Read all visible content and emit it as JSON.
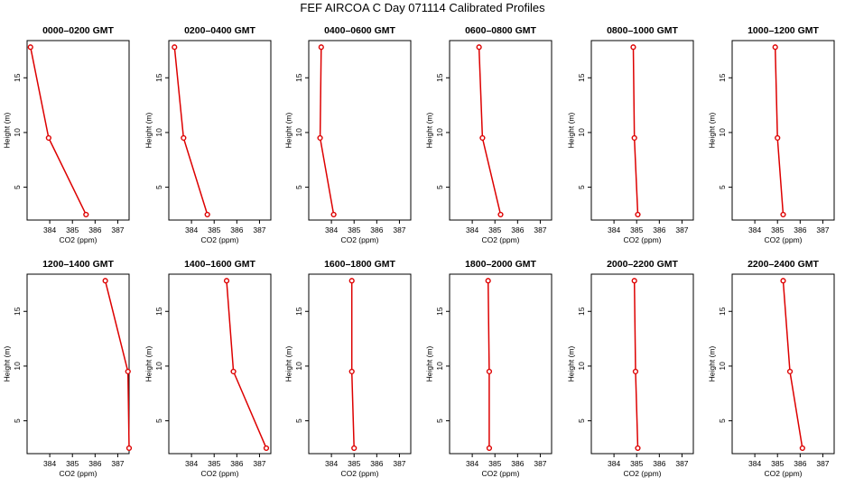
{
  "title": "FEF AIRCOA C  Day 071114  Calibrated Profiles",
  "colors": {
    "line": "#dd0000",
    "axis": "#000000"
  },
  "chart_data": {
    "type": "line",
    "xlabel": "CO2 (ppm)",
    "ylabel": "Height (m)",
    "xlim": [
      383,
      387.5
    ],
    "ylim": [
      2,
      18.4
    ],
    "xticks": [
      384,
      385,
      386,
      387
    ],
    "yticks": [
      5,
      10,
      15
    ],
    "panels": [
      {
        "title": "0000–0200 GMT",
        "points": [
          [
            383.15,
            17.8
          ],
          [
            383.95,
            9.5
          ],
          [
            385.6,
            2.5
          ]
        ]
      },
      {
        "title": "0200–0400 GMT",
        "points": [
          [
            383.25,
            17.8
          ],
          [
            383.65,
            9.5
          ],
          [
            384.7,
            2.5
          ]
        ]
      },
      {
        "title": "0400–0600 GMT",
        "points": [
          [
            383.55,
            17.8
          ],
          [
            383.5,
            9.5
          ],
          [
            384.1,
            2.5
          ]
        ]
      },
      {
        "title": "0600–0800 GMT",
        "points": [
          [
            384.3,
            17.8
          ],
          [
            384.45,
            9.5
          ],
          [
            385.25,
            2.5
          ]
        ]
      },
      {
        "title": "0800–1000 GMT",
        "points": [
          [
            384.85,
            17.8
          ],
          [
            384.9,
            9.5
          ],
          [
            385.05,
            2.5
          ]
        ]
      },
      {
        "title": "1000–1200 GMT",
        "points": [
          [
            384.9,
            17.8
          ],
          [
            385.0,
            9.5
          ],
          [
            385.25,
            2.5
          ]
        ]
      },
      {
        "title": "1200–1400 GMT",
        "points": [
          [
            386.45,
            17.8
          ],
          [
            387.45,
            9.5
          ],
          [
            387.5,
            2.5
          ]
        ]
      },
      {
        "title": "1400–1600 GMT",
        "points": [
          [
            385.55,
            17.8
          ],
          [
            385.85,
            9.5
          ],
          [
            387.3,
            2.5
          ]
        ]
      },
      {
        "title": "1600–1800 GMT",
        "points": [
          [
            384.9,
            17.8
          ],
          [
            384.9,
            9.5
          ],
          [
            385.0,
            2.5
          ]
        ]
      },
      {
        "title": "1800–2000 GMT",
        "points": [
          [
            384.7,
            17.8
          ],
          [
            384.75,
            9.5
          ],
          [
            384.75,
            2.5
          ]
        ]
      },
      {
        "title": "2000–2200 GMT",
        "points": [
          [
            384.9,
            17.8
          ],
          [
            384.95,
            9.5
          ],
          [
            385.05,
            2.5
          ]
        ]
      },
      {
        "title": "2200–2400 GMT",
        "points": [
          [
            385.25,
            17.8
          ],
          [
            385.55,
            9.5
          ],
          [
            386.1,
            2.5
          ]
        ]
      }
    ]
  }
}
